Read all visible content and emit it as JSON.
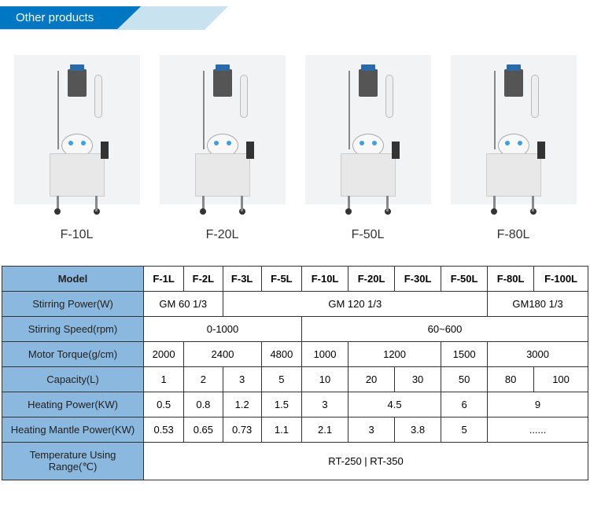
{
  "header": {
    "title": "Other products"
  },
  "products": [
    {
      "label": "F-10L"
    },
    {
      "label": "F-20L"
    },
    {
      "label": "F-50L"
    },
    {
      "label": "F-80L"
    }
  ],
  "table": {
    "header_label": "Model",
    "models": [
      "F-1L",
      "F-2L",
      "F-3L",
      "F-5L",
      "F-10L",
      "F-20L",
      "F-30L",
      "F-50L",
      "F-80L",
      "F-100L"
    ],
    "rows": {
      "stirring_power": {
        "label": "Stirring Power(W)",
        "cells": [
          {
            "span": 2,
            "text": "GM 60 1/3"
          },
          {
            "span": 6,
            "text": "GM 120 1/3"
          },
          {
            "span": 2,
            "text": "GM180 1/3"
          }
        ]
      },
      "stirring_speed": {
        "label": "Stirring Speed(rpm)",
        "cells": [
          {
            "span": 4,
            "text": "0-1000"
          },
          {
            "span": 6,
            "text": "60~600"
          }
        ]
      },
      "motor_torque": {
        "label": "Motor Torque(g/cm)",
        "cells": [
          {
            "span": 1,
            "text": "2000"
          },
          {
            "span": 2,
            "text": "2400"
          },
          {
            "span": 1,
            "text": "4800"
          },
          {
            "span": 1,
            "text": "1000"
          },
          {
            "span": 2,
            "text": "1200"
          },
          {
            "span": 1,
            "text": "1500"
          },
          {
            "span": 2,
            "text": "3000"
          }
        ]
      },
      "capacity": {
        "label": "Capacity(L)",
        "cells": [
          {
            "span": 1,
            "text": "1"
          },
          {
            "span": 1,
            "text": "2"
          },
          {
            "span": 1,
            "text": "3"
          },
          {
            "span": 1,
            "text": "5"
          },
          {
            "span": 1,
            "text": "10"
          },
          {
            "span": 1,
            "text": "20"
          },
          {
            "span": 1,
            "text": "30"
          },
          {
            "span": 1,
            "text": "50"
          },
          {
            "span": 1,
            "text": "80"
          },
          {
            "span": 1,
            "text": "100"
          }
        ]
      },
      "heating_power": {
        "label": "Heating Power(KW)",
        "cells": [
          {
            "span": 1,
            "text": "0.5"
          },
          {
            "span": 1,
            "text": "0.8"
          },
          {
            "span": 1,
            "text": "1.2"
          },
          {
            "span": 1,
            "text": "1.5"
          },
          {
            "span": 1,
            "text": "3"
          },
          {
            "span": 2,
            "text": "4.5"
          },
          {
            "span": 1,
            "text": "6"
          },
          {
            "span": 2,
            "text": "9"
          }
        ]
      },
      "mantle_power": {
        "label": "Heating  Mantle Power(KW)",
        "cells": [
          {
            "span": 1,
            "text": "0.53"
          },
          {
            "span": 1,
            "text": "0.65"
          },
          {
            "span": 1,
            "text": "0.73"
          },
          {
            "span": 1,
            "text": "1.1"
          },
          {
            "span": 1,
            "text": "2.1"
          },
          {
            "span": 1,
            "text": "3"
          },
          {
            "span": 1,
            "text": "3.8"
          },
          {
            "span": 1,
            "text": "5"
          },
          {
            "span": 2,
            "text": "......"
          }
        ]
      },
      "temp_range": {
        "label": "Temperature Using Range(℃)",
        "cells": [
          {
            "span": 10,
            "text": "RT-250 |  RT-350"
          }
        ]
      }
    },
    "colors": {
      "label_bg": "#8ab8de",
      "border": "#333333",
      "header_blue": "#0077c2",
      "header_light": "#c9e2ef"
    }
  }
}
